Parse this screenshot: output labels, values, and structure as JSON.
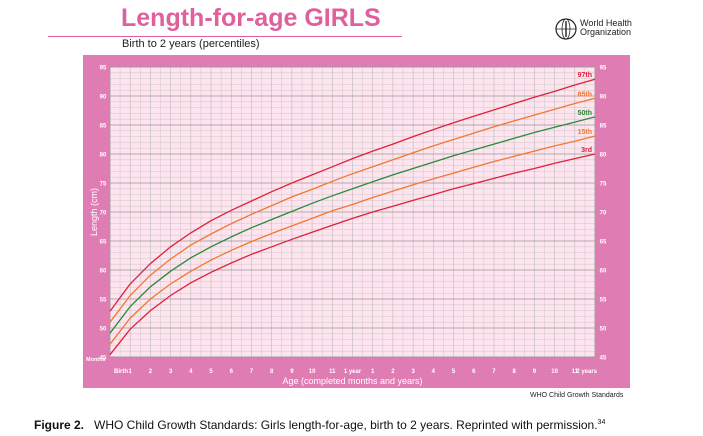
{
  "header": {
    "title": "Length-for-age GIRLS",
    "subtitle": "Birth to 2 years (percentiles)",
    "org_line1": "World Health",
    "org_line2": "Organization",
    "logo_icon": "who-emblem-icon"
  },
  "credit": "WHO Child Growth Standards",
  "caption": {
    "label": "Figure 2.",
    "text": "WHO Child Growth Standards: Girls length-for-age, birth to 2 years. Reprinted with permission.",
    "ref": "34"
  },
  "colors": {
    "frame": "#e07cb4",
    "plot_bg": "#fde4ee",
    "grid": "#bbbbbb",
    "title": "#e0609e",
    "axis_text": "#ffffff",
    "p3": "#e0203c",
    "p15": "#f07830",
    "p50": "#2a8a3e",
    "p85": "#f07830",
    "p97": "#e0203c"
  },
  "chart_data": {
    "type": "line",
    "title": "Length-for-age GIRLS",
    "subtitle": "Birth to 2 years (percentiles)",
    "xlabel": "Age (completed months and years)",
    "ylabel": "Length (cm)",
    "xlim": [
      0,
      24
    ],
    "ylim": [
      45,
      95
    ],
    "corner_label": "Months",
    "x_ticks": [
      {
        "x": 0,
        "label": "Birth",
        "bold": true
      },
      {
        "x": 1,
        "label": "1"
      },
      {
        "x": 2,
        "label": "2"
      },
      {
        "x": 3,
        "label": "3"
      },
      {
        "x": 4,
        "label": "4"
      },
      {
        "x": 5,
        "label": "5"
      },
      {
        "x": 6,
        "label": "6"
      },
      {
        "x": 7,
        "label": "7"
      },
      {
        "x": 8,
        "label": "8"
      },
      {
        "x": 9,
        "label": "9"
      },
      {
        "x": 10,
        "label": "10"
      },
      {
        "x": 11,
        "label": "11"
      },
      {
        "x": 12,
        "label": "1 year",
        "bold": true
      },
      {
        "x": 13,
        "label": "1"
      },
      {
        "x": 14,
        "label": "2"
      },
      {
        "x": 15,
        "label": "3"
      },
      {
        "x": 16,
        "label": "4"
      },
      {
        "x": 17,
        "label": "5"
      },
      {
        "x": 18,
        "label": "6"
      },
      {
        "x": 19,
        "label": "7"
      },
      {
        "x": 20,
        "label": "8"
      },
      {
        "x": 21,
        "label": "9"
      },
      {
        "x": 22,
        "label": "10"
      },
      {
        "x": 23,
        "label": "11"
      },
      {
        "x": 24,
        "label": "2 years",
        "bold": true
      }
    ],
    "y_ticks": [
      45,
      50,
      55,
      60,
      65,
      70,
      75,
      80,
      85,
      90,
      95
    ],
    "grid": true,
    "x": [
      0,
      1,
      2,
      3,
      4,
      5,
      6,
      7,
      8,
      9,
      10,
      11,
      12,
      13,
      14,
      15,
      16,
      17,
      18,
      19,
      20,
      21,
      22,
      23,
      24
    ],
    "series": [
      {
        "name": "97th",
        "color_key": "p97",
        "values": [
          52.9,
          57.6,
          61.1,
          64.0,
          66.4,
          68.5,
          70.3,
          71.9,
          73.5,
          75.0,
          76.4,
          77.8,
          79.2,
          80.5,
          81.7,
          83.0,
          84.2,
          85.4,
          86.5,
          87.6,
          88.7,
          89.8,
          90.8,
          91.9,
          92.9
        ]
      },
      {
        "name": "85th",
        "color_key": "p85",
        "values": [
          51.0,
          55.6,
          59.1,
          61.9,
          64.3,
          66.2,
          68.0,
          69.6,
          71.1,
          72.6,
          73.9,
          75.3,
          76.6,
          77.8,
          79.0,
          80.2,
          81.4,
          82.5,
          83.6,
          84.7,
          85.7,
          86.7,
          87.7,
          88.7,
          89.6
        ]
      },
      {
        "name": "50th",
        "color_key": "p50",
        "values": [
          49.1,
          53.7,
          57.1,
          59.8,
          62.1,
          64.0,
          65.7,
          67.3,
          68.7,
          70.1,
          71.5,
          72.8,
          74.0,
          75.2,
          76.4,
          77.5,
          78.6,
          79.7,
          80.7,
          81.7,
          82.7,
          83.7,
          84.6,
          85.5,
          86.4
        ]
      },
      {
        "name": "15th",
        "color_key": "p15",
        "values": [
          47.2,
          51.7,
          55.0,
          57.6,
          59.8,
          61.7,
          63.4,
          64.9,
          66.3,
          67.6,
          68.9,
          70.2,
          71.3,
          72.5,
          73.6,
          74.7,
          75.7,
          76.7,
          77.7,
          78.7,
          79.6,
          80.5,
          81.4,
          82.2,
          83.1
        ]
      },
      {
        "name": "3rd",
        "color_key": "p3",
        "values": [
          45.4,
          49.8,
          53.0,
          55.6,
          57.8,
          59.6,
          61.2,
          62.7,
          64.0,
          65.3,
          66.5,
          67.7,
          68.9,
          70.0,
          71.0,
          72.0,
          73.0,
          74.0,
          74.9,
          75.8,
          76.7,
          77.5,
          78.4,
          79.2,
          80.0
        ]
      }
    ]
  }
}
